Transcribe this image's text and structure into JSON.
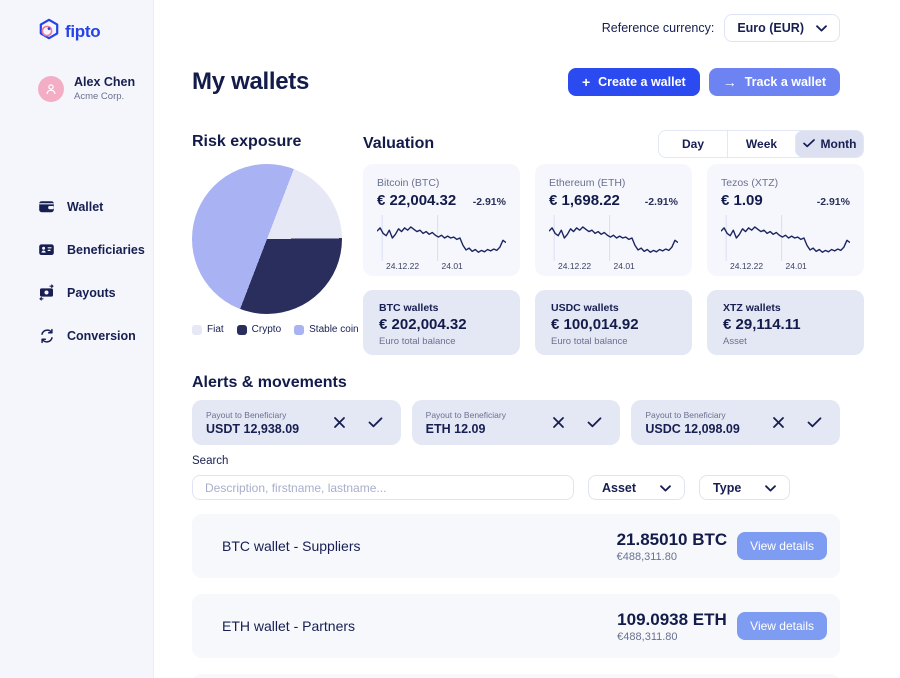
{
  "colors": {
    "accent_blue": "#2b4aef",
    "track_blue": "#6d83f2",
    "details_blue": "#7f9cf3",
    "navy_text": "#131b4a",
    "pie_fiat": "#e6e8f5",
    "pie_crypto": "#292e5c",
    "pie_stable": "#a9b2f2"
  },
  "sidebar": {
    "logo_text": "fipto",
    "user": {
      "name": "Alex Chen",
      "company": "Acme Corp."
    },
    "items": [
      {
        "label": "Wallet",
        "icon": "wallet-icon"
      },
      {
        "label": "Beneficiaries",
        "icon": "beneficiaries-icon"
      },
      {
        "label": "Payouts",
        "icon": "payouts-icon"
      },
      {
        "label": "Conversion",
        "icon": "conversion-icon"
      }
    ]
  },
  "header": {
    "reference_currency_label": "Reference currency:",
    "reference_currency_value": "Euro (EUR)",
    "title": "My wallets",
    "create_wallet_label": "Create a wallet",
    "track_wallet_label": "Track a wallet"
  },
  "risk_exposure": {
    "title": "Risk exposure",
    "rotation_deg": 21,
    "legend": [
      {
        "label": "Fiat",
        "color": "#e6e8f5",
        "value_pct": 19
      },
      {
        "label": "Crypto",
        "color": "#292e5c",
        "value_pct": 31
      },
      {
        "label": "Stable coin",
        "color": "#a9b2f2",
        "value_pct": 50
      }
    ]
  },
  "valuation": {
    "title": "Valuation",
    "periods": [
      {
        "label": "Day",
        "selected": false
      },
      {
        "label": "Week",
        "selected": false
      },
      {
        "label": "Month",
        "selected": true
      }
    ],
    "assets": [
      {
        "name": "Bitcoin (BTC)",
        "price": "€ 22,004.32",
        "change": "-2.91%",
        "date_start": "24.12.22",
        "date_mid": "24.01"
      },
      {
        "name": "Ethereum (ETH)",
        "price": "€ 1,698.22",
        "change": "-2.91%",
        "date_start": "24.12.22",
        "date_mid": "24.01"
      },
      {
        "name": "Tezos (XTZ)",
        "price": "€ 1.09",
        "change": "-2.91%",
        "date_start": "24.12.22",
        "date_mid": "24.01"
      }
    ],
    "sparkline_points": [
      35,
      28,
      40,
      45,
      33,
      50,
      42,
      30,
      36,
      28,
      33,
      26,
      31,
      36,
      33,
      40,
      36,
      42,
      38,
      44,
      48,
      44,
      50,
      46,
      50,
      48,
      53,
      50,
      66,
      76,
      72,
      79,
      75,
      81,
      77,
      80,
      75,
      78,
      74,
      77,
      70,
      55,
      60
    ],
    "marker_positions": [
      0.04,
      0.47
    ]
  },
  "balances": [
    {
      "title": "BTC wallets",
      "amount": "€ 202,004.32",
      "caption": "Euro total balance"
    },
    {
      "title": "USDC wallets",
      "amount": "€ 100,014.92",
      "caption": "Euro total balance"
    },
    {
      "title": "XTZ wallets",
      "amount": "€ 29,114.11",
      "caption": "Asset"
    }
  ],
  "alerts": {
    "title": "Alerts & movements",
    "items": [
      {
        "label": "Payout to Beneficiary",
        "amount": "USDT 12,938.09"
      },
      {
        "label": "Payout to Beneficiary",
        "amount": "ETH 12.09"
      },
      {
        "label": "Payout to Beneficiary",
        "amount": "USDC 12,098.09"
      }
    ]
  },
  "search": {
    "label": "Search",
    "placeholder": "Description, firstname, lastname...",
    "filters": [
      {
        "label": "Asset"
      },
      {
        "label": "Type"
      }
    ]
  },
  "wallets": [
    {
      "name": "BTC wallet - Suppliers",
      "amount": "21.85010 BTC",
      "fiat": "€488,311.80",
      "action": "View details"
    },
    {
      "name": "ETH wallet - Partners",
      "amount": "109.0938 ETH",
      "fiat": "€488,311.80",
      "action": "View details"
    }
  ],
  "chart_data": [
    {
      "type": "pie",
      "title": "Risk exposure",
      "categories": [
        "Fiat",
        "Crypto",
        "Stable coin"
      ],
      "values": [
        19,
        31,
        50
      ],
      "colors": [
        "#e6e8f5",
        "#292e5c",
        "#a9b2f2"
      ],
      "legend_position": "bottom"
    },
    {
      "type": "line",
      "title": "Asset valuation sparkline (normalized, shared by BTC/ETH/XTZ cards)",
      "x_range": [
        0,
        100
      ],
      "y_inverted_values": [
        35,
        28,
        40,
        45,
        33,
        50,
        42,
        30,
        36,
        28,
        33,
        26,
        31,
        36,
        33,
        40,
        36,
        42,
        38,
        44,
        48,
        44,
        50,
        46,
        50,
        48,
        53,
        50,
        66,
        76,
        72,
        79,
        75,
        81,
        77,
        80,
        75,
        78,
        74,
        77,
        70,
        55,
        60
      ],
      "x_markers": [
        "24.12.22",
        "24.01"
      ],
      "grid": false
    }
  ]
}
